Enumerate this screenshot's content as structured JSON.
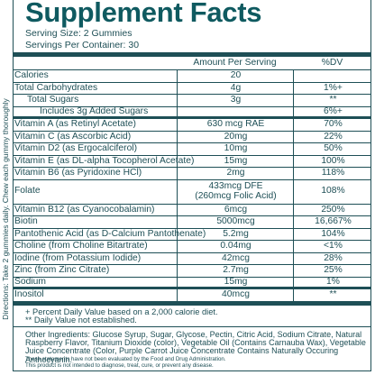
{
  "title": "Supplement Facts",
  "serving_size": "Serving Size: 2 Gummies",
  "servings_per_container": "Servings Per Container: 30",
  "header": {
    "amount": "Amount Per Serving",
    "dv": "%DV"
  },
  "rows": [
    {
      "name": "Calories",
      "amount": "20"
    },
    {
      "name": "Total Carbohydrates",
      "amount": "4g",
      "dv": "1%+"
    },
    {
      "name": "Total Sugars",
      "amount": "3g",
      "dv": "**"
    },
    {
      "name": "Includes 3g Added Sugars",
      "dv": "6%+"
    },
    {
      "name": "Vitamin A (as Retinyl Acetate)",
      "amount": "630 mcg RAE",
      "dv": "70%"
    },
    {
      "name": "Vitamin C (as Ascorbic Acid)",
      "amount": "20mg",
      "dv": "22%"
    },
    {
      "name": "Vitamin D2 (as Ergocalciferol)",
      "amount": "10mg",
      "dv": "50%"
    },
    {
      "name": "Vitamin E (as DL-alpha Tocopherol Acetate)",
      "amount": "15mg",
      "dv": "100%"
    },
    {
      "name": "Vitamin B6 (as Pyridoxine HCl)",
      "amount": "2mg",
      "dv": "118%"
    },
    {
      "name": "Folate",
      "amount": [
        "433mcg DFE",
        "(260mcg Folic Acid)"
      ],
      "dv": "108%"
    },
    {
      "name": "Vitamin B12 (as Cyanocobalamin)",
      "amount": "6mcg",
      "dv": "250%"
    },
    {
      "name": "Biotin",
      "amount": "5000mcg",
      "dv": "16,667%"
    },
    {
      "name": "Pantothenic Acid (as D-Calcium Pantothenate)",
      "amount": "5.2mg",
      "dv": "104%"
    },
    {
      "name": "Choline (from Choline Bitartrate)",
      "amount": "0.04mg",
      "dv": "<1%"
    },
    {
      "name": "Iodine (from Potassium Iodide)",
      "amount": "42mcg",
      "dv": "28%"
    },
    {
      "name": "Zinc (from Zinc Citrate)",
      "amount": "2.7mg",
      "dv": "25%"
    },
    {
      "name": "Sodium",
      "amount": "15mg",
      "dv": "1%"
    },
    {
      "name": "Inositol",
      "amount": "40mcg",
      "dv": "**"
    }
  ],
  "footnotes": [
    "+ Percent Daily Value based on a 2,000 calorie diet.",
    "** Daily Value not established."
  ],
  "other_ingredients": "Other Ingredients: Glucose Syrup, Sugar, Glycose, Pectin, Citric Acid, Sodium Citrate, Natural Raspberry Flavor, Titanium Dioxide (color), Vegetable Oil (Contains Carnauba Wax), Vegetable Juice Concentrate (Color, Purple Carrot Juice Concentrate Contains Naturally Occuring Anthocyanin.",
  "disclaimer": [
    "These statements have not been evaluated by the Food and Drug Administration.",
    "This product is not intended to diagnose, treat, cure, or prevent any disease."
  ],
  "directions": "Directions: Take 2 gummies daily. Chew each gummy thoroughly"
}
